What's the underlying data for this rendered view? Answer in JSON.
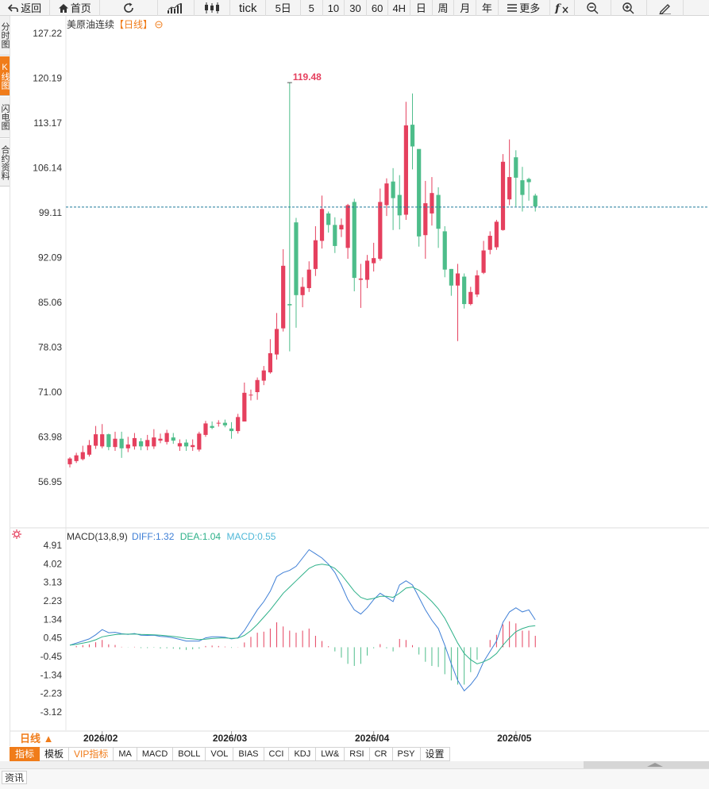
{
  "toolbar": {
    "back": "返回",
    "home": "首页",
    "tick": "tick",
    "periods": [
      "5日",
      "5",
      "10",
      "30",
      "60",
      "4H",
      "日",
      "周",
      "月",
      "年"
    ],
    "more": "更多"
  },
  "side_tabs": [
    "分时图",
    "K线图",
    "闪电图",
    "合约资料"
  ],
  "chart": {
    "instrument": "美原油连续",
    "period_label": "【日线】",
    "y_ticks": [
      "127.22",
      "120.19",
      "113.17",
      "106.14",
      "99.11",
      "92.09",
      "85.06",
      "78.03",
      "71.00",
      "63.98",
      "56.95"
    ],
    "high_marker": "119.48",
    "last_price": 100.0,
    "x_labels": [
      "2026/02",
      "2026/03",
      "2026/04",
      "2026/05"
    ],
    "period_button": "日线 ▲"
  },
  "macd": {
    "name": "MACD(13,8,9)",
    "diff": "DIFF:1.32",
    "dea": "DEA:1.04",
    "macd": "MACD:0.55",
    "y_ticks": [
      "4.91",
      "4.02",
      "3.13",
      "2.23",
      "1.34",
      "0.45",
      "-0.45",
      "-1.34",
      "-2.23",
      "-3.12"
    ],
    "colors": {
      "diff": "#3f7fd6",
      "dea": "#2eb189"
    }
  },
  "indicator_tabs": [
    "指标",
    "模板",
    "VIP指标",
    "MA",
    "MACD",
    "BOLL",
    "VOL",
    "BIAS",
    "CCI",
    "KDJ",
    "LW&",
    "RSI",
    "CR",
    "PSY",
    "设置"
  ],
  "news": {
    "tab": "资讯"
  },
  "colors": {
    "up": "#e5405e",
    "down": "#4dbd8a",
    "accent": "#f07c1a"
  },
  "chart_data": [
    {
      "type": "candlestick",
      "title": "美原油连续【日线】",
      "ylim": [
        56.95,
        127.22
      ],
      "x": [
        "2026/01/26",
        "2026/01/27",
        "2026/01/28",
        "2026/01/29",
        "2026/01/30",
        "2026/02/02",
        "2026/02/03",
        "2026/02/04",
        "2026/02/05",
        "2026/02/06",
        "2026/02/09",
        "2026/02/10",
        "2026/02/11",
        "2026/02/12",
        "2026/02/13",
        "2026/02/16",
        "2026/02/17",
        "2026/02/18",
        "2026/02/19",
        "2026/02/20",
        "2026/02/23",
        "2026/02/24",
        "2026/02/25",
        "2026/02/26",
        "2026/02/27",
        "2026/03/02",
        "2026/03/03",
        "2026/03/04",
        "2026/03/05",
        "2026/03/06",
        "2026/03/09",
        "2026/03/10",
        "2026/03/11",
        "2026/03/12",
        "2026/03/13",
        "2026/03/16",
        "2026/03/17",
        "2026/03/18",
        "2026/03/19",
        "2026/03/20",
        "2026/03/23",
        "2026/03/24",
        "2026/03/25",
        "2026/03/26",
        "2026/03/27",
        "2026/03/30",
        "2026/03/31",
        "2026/04/01",
        "2026/04/02",
        "2026/04/03",
        "2026/04/06",
        "2026/04/07",
        "2026/04/08",
        "2026/04/09",
        "2026/04/10",
        "2026/04/13",
        "2026/04/14",
        "2026/04/15",
        "2026/04/16",
        "2026/04/17",
        "2026/04/20",
        "2026/04/21",
        "2026/04/22",
        "2026/04/23",
        "2026/04/24",
        "2026/04/27",
        "2026/04/28",
        "2026/04/29",
        "2026/04/30",
        "2026/05/01",
        "2026/05/04",
        "2026/05/05",
        "2026/05/06"
      ],
      "open": [
        59.7,
        60.2,
        60.5,
        61.2,
        62.6,
        62.5,
        64.4,
        62.4,
        63.7,
        62.2,
        62.5,
        63.3,
        62.5,
        62.5,
        63.4,
        63.2,
        63.9,
        62.5,
        63.1,
        62.4,
        62.0,
        64.3,
        65.7,
        66.2,
        66.2,
        65.3,
        64.9,
        66.4,
        70.5,
        71.0,
        72.8,
        74.1,
        76.9,
        81.0,
        84.8,
        97.6,
        86.2,
        87.3,
        90.3,
        94.7,
        99.0,
        97.2,
        96.5,
        93.6,
        100.8,
        88.6,
        88.6,
        91.2,
        91.9,
        100.3,
        104.0,
        101.9,
        98.8,
        112.9,
        109.1,
        95.6,
        99.0,
        101.9,
        96.2,
        90.3,
        87.7,
        89.1,
        84.8,
        86.3,
        89.7,
        93.3,
        93.7,
        96.4,
        101.2,
        107.8,
        104.2,
        104.4,
        101.8
      ],
      "close": [
        60.6,
        61.1,
        61.6,
        62.7,
        64.4,
        64.4,
        62.4,
        63.7,
        62.2,
        62.8,
        63.8,
        62.5,
        63.5,
        63.9,
        63.7,
        64.6,
        63.4,
        63.0,
        62.5,
        62.7,
        64.5,
        66.1,
        65.4,
        66.2,
        65.8,
        64.9,
        67.1,
        70.9,
        70.6,
        72.9,
        74.4,
        77.1,
        80.9,
        90.8,
        84.6,
        86.2,
        87.5,
        90.2,
        94.8,
        99.7,
        97.2,
        93.9,
        97.2,
        100.3,
        88.9,
        88.8,
        91.6,
        92.0,
        100.8,
        103.7,
        101.4,
        98.7,
        112.8,
        109.5,
        95.4,
        100.6,
        102.2,
        96.6,
        90.2,
        87.7,
        89.6,
        84.8,
        86.7,
        89.3,
        93.2,
        95.5,
        97.7,
        107.1,
        104.7,
        104.6,
        101.9,
        103.9,
        100.1
      ],
      "high": [
        60.8,
        61.5,
        62.6,
        63.5,
        65.7,
        66.0,
        64.5,
        64.8,
        64.8,
        64.0,
        64.6,
        63.8,
        64.3,
        65.2,
        64.5,
        65.1,
        64.6,
        63.6,
        63.6,
        63.6,
        64.8,
        66.5,
        66.4,
        66.6,
        66.7,
        66.3,
        67.6,
        72.5,
        71.4,
        73.3,
        75.1,
        79.3,
        83.4,
        93.4,
        119.5,
        98.3,
        89.0,
        91.5,
        97.0,
        101.8,
        99.3,
        98.4,
        98.2,
        100.5,
        101.3,
        91.1,
        92.5,
        94.4,
        102.9,
        104.5,
        106.1,
        105.0,
        116.5,
        117.8,
        108.7,
        104.1,
        104.7,
        103.1,
        97.0,
        90.3,
        91.1,
        89.6,
        87.5,
        90.1,
        94.7,
        96.2,
        98.0,
        108.3,
        110.6,
        108.9,
        106.3,
        104.6,
        102.1
      ],
      "low": [
        59.2,
        59.9,
        60.3,
        60.9,
        62.1,
        62.2,
        61.9,
        61.8,
        60.7,
        61.6,
        62.0,
        61.9,
        61.9,
        62.1,
        63.0,
        62.8,
        62.9,
        61.8,
        61.8,
        61.8,
        61.7,
        64.0,
        65.2,
        65.6,
        65.5,
        63.7,
        64.5,
        66.4,
        69.7,
        69.8,
        72.1,
        73.9,
        76.1,
        80.5,
        77.4,
        81.1,
        84.3,
        86.7,
        89.2,
        93.5,
        96.0,
        92.8,
        95.3,
        91.9,
        86.8,
        84.2,
        87.3,
        89.9,
        91.6,
        98.6,
        96.4,
        96.5,
        98.0,
        105.9,
        93.8,
        91.9,
        97.1,
        93.6,
        89.0,
        86.1,
        79.0,
        84.1,
        84.6,
        85.9,
        89.5,
        92.6,
        93.3,
        96.3,
        100.3,
        100.1,
        99.3,
        101.0,
        99.3
      ]
    },
    {
      "type": "line",
      "title": "MACD(13,8,9)",
      "ylim": [
        -4.0,
        5.3
      ],
      "series": [
        {
          "name": "DIFF",
          "values": [
            0.1,
            0.2,
            0.3,
            0.4,
            0.6,
            0.85,
            0.7,
            0.72,
            0.65,
            0.62,
            0.66,
            0.58,
            0.57,
            0.58,
            0.52,
            0.5,
            0.45,
            0.38,
            0.3,
            0.3,
            0.3,
            0.45,
            0.5,
            0.5,
            0.48,
            0.4,
            0.45,
            0.8,
            1.3,
            1.8,
            2.2,
            2.7,
            3.4,
            3.6,
            3.7,
            3.9,
            4.3,
            4.7,
            4.5,
            4.3,
            4.0,
            3.6,
            3.0,
            2.3,
            1.8,
            1.6,
            1.9,
            2.3,
            2.6,
            2.4,
            2.2,
            3.0,
            3.2,
            3.0,
            2.4,
            1.8,
            1.3,
            0.9,
            0.1,
            -0.8,
            -1.6,
            -2.1,
            -1.8,
            -1.4,
            -0.7,
            -0.2,
            0.3,
            1.2,
            1.7,
            1.9,
            1.7,
            1.8,
            1.32
          ]
        },
        {
          "name": "DEA",
          "values": [
            0.1,
            0.14,
            0.2,
            0.26,
            0.36,
            0.5,
            0.56,
            0.61,
            0.63,
            0.63,
            0.64,
            0.62,
            0.61,
            0.6,
            0.58,
            0.55,
            0.52,
            0.48,
            0.43,
            0.4,
            0.37,
            0.39,
            0.42,
            0.44,
            0.45,
            0.43,
            0.44,
            0.57,
            0.8,
            1.1,
            1.45,
            1.8,
            2.2,
            2.6,
            2.9,
            3.2,
            3.5,
            3.8,
            3.95,
            4.0,
            3.95,
            3.8,
            3.5,
            3.1,
            2.7,
            2.4,
            2.3,
            2.35,
            2.45,
            2.45,
            2.4,
            2.6,
            2.85,
            2.9,
            2.75,
            2.5,
            2.2,
            1.85,
            1.4,
            0.8,
            0.2,
            -0.3,
            -0.6,
            -0.8,
            -0.7,
            -0.55,
            -0.3,
            0.1,
            0.45,
            0.75,
            0.9,
            1.0,
            1.04
          ]
        },
        {
          "name": "MACD",
          "values": [
            0.0,
            0.06,
            0.1,
            0.14,
            0.24,
            0.35,
            0.14,
            0.11,
            0.02,
            -0.01,
            0.02,
            -0.04,
            -0.04,
            -0.02,
            -0.06,
            -0.05,
            -0.07,
            -0.1,
            -0.13,
            -0.1,
            -0.07,
            0.06,
            0.08,
            0.06,
            0.03,
            -0.03,
            0.01,
            0.23,
            0.5,
            0.7,
            0.75,
            0.9,
            1.2,
            1.0,
            0.8,
            0.7,
            0.8,
            0.9,
            0.55,
            0.3,
            0.05,
            -0.2,
            -0.5,
            -0.8,
            -0.9,
            -0.8,
            -0.4,
            -0.05,
            0.15,
            -0.05,
            -0.2,
            0.4,
            0.35,
            0.1,
            -0.35,
            -0.7,
            -0.9,
            -0.95,
            -1.3,
            -1.6,
            -1.8,
            -1.8,
            -1.2,
            -0.6,
            0.0,
            0.35,
            0.6,
            1.1,
            1.25,
            1.15,
            0.8,
            0.8,
            0.55
          ]
        }
      ]
    }
  ]
}
